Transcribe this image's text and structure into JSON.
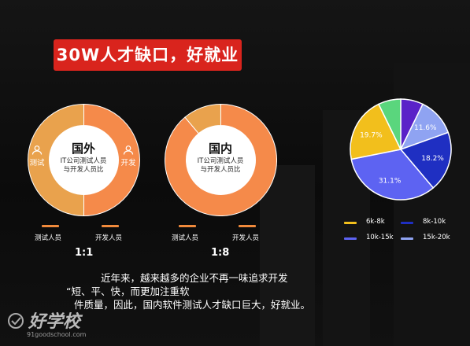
{
  "title": "30W人才缺口，好就业",
  "chart_data": [
    {
      "type": "pie",
      "variant": "donut",
      "center_title": "国外",
      "center_subtitle_lines": [
        "IT公司测试人员",
        "与开发人员比"
      ],
      "categories": [
        "测试人员",
        "开发人员"
      ],
      "values": [
        50,
        50
      ],
      "side_labels": [
        "测试",
        "开发"
      ],
      "ratio": "1:1",
      "colors": [
        "#e9a24d",
        "#f58a4a"
      ]
    },
    {
      "type": "pie",
      "variant": "donut",
      "center_title": "国内",
      "center_subtitle_lines": [
        "IT公司测试人员",
        "与开发人员比"
      ],
      "categories": [
        "测试人员",
        "开发人员"
      ],
      "values": [
        11.1,
        88.9
      ],
      "ratio": "1:8",
      "colors": [
        "#e9a24d",
        "#f58a4a"
      ]
    },
    {
      "type": "pie",
      "categories": [
        "6k-8k",
        "8k-10k",
        "10k-15k",
        "15k-20k"
      ],
      "slices": [
        {
          "label": "",
          "value": 6.8,
          "color": "#5a22c8"
        },
        {
          "label": "11.6%",
          "value": 11.6,
          "color": "#8fa3f2"
        },
        {
          "label": "18.2%",
          "value": 18.2,
          "color": "#1f2fc2"
        },
        {
          "label": "31.1%",
          "value": 31.1,
          "color": "#5d63f2"
        },
        {
          "label": "19.7%",
          "value": 19.7,
          "color": "#f2bf1c"
        },
        {
          "label": "",
          "value": 6.8,
          "color": "#5ad67d"
        }
      ],
      "legend": [
        {
          "name": "6k-8k",
          "color": "#f2bf1c"
        },
        {
          "name": "8k-10k",
          "color": "#1f2fc2"
        },
        {
          "name": "10k-15k",
          "color": "#5d63f2"
        },
        {
          "name": "15k-20k",
          "color": "#8fa3f2"
        }
      ]
    }
  ],
  "paragraph": {
    "line1": "近年来，越来越多的企业不再一味追求开发",
    "line2": "“短、平、快，而更加注重软",
    "line3": "件质量，因此，国内软件测试人才缺口巨大，好就业。"
  },
  "watermark": {
    "brand": "好学校",
    "url": "91goodschool.com"
  }
}
